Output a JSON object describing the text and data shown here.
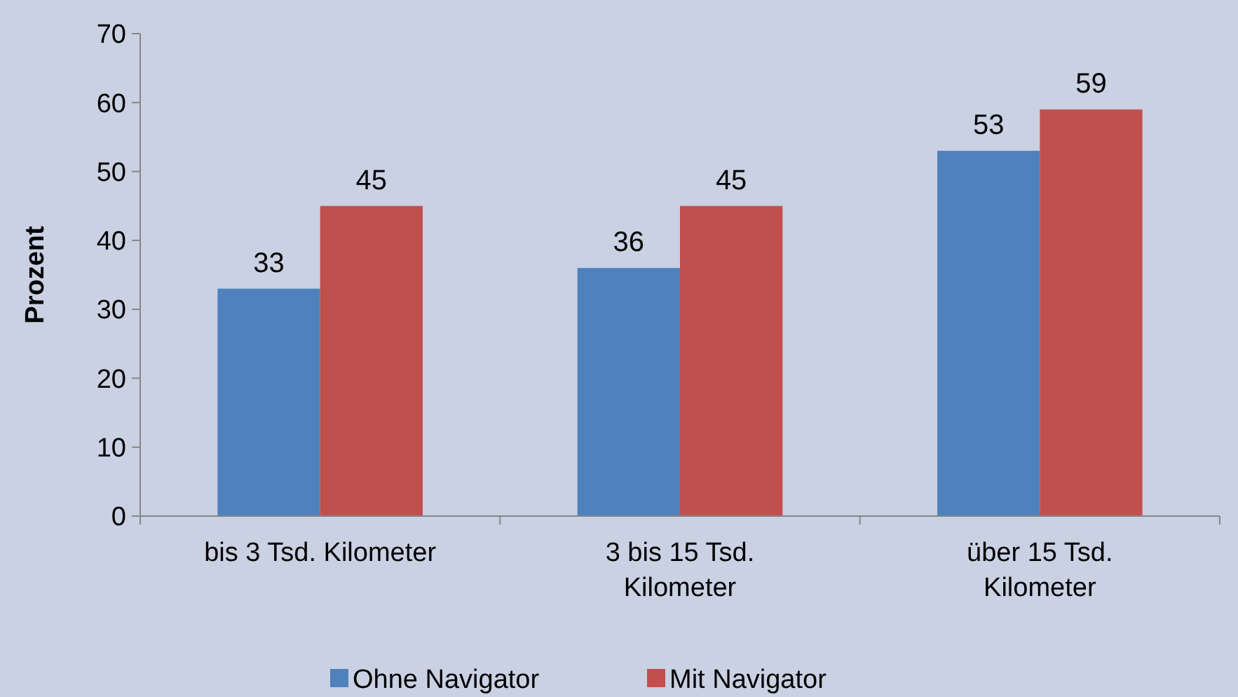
{
  "chart_data": {
    "type": "bar",
    "ylabel": "Prozent",
    "categories": [
      "bis 3 Tsd. Kilometer",
      "3 bis 15 Tsd. Kilometer",
      "über 15 Tsd. Kilometer"
    ],
    "series": [
      {
        "name": "Ohne Navigator",
        "color": "#4f81bd",
        "values": [
          33,
          36,
          53
        ]
      },
      {
        "name": "Mit Navigator",
        "color": "#c0504d",
        "values": [
          45,
          45,
          59
        ]
      }
    ],
    "ylim": [
      0,
      70
    ],
    "yticks": [
      0,
      10,
      20,
      30,
      40,
      50,
      60,
      70
    ],
    "data_labels": true,
    "legend": "bottom",
    "grid": false
  }
}
